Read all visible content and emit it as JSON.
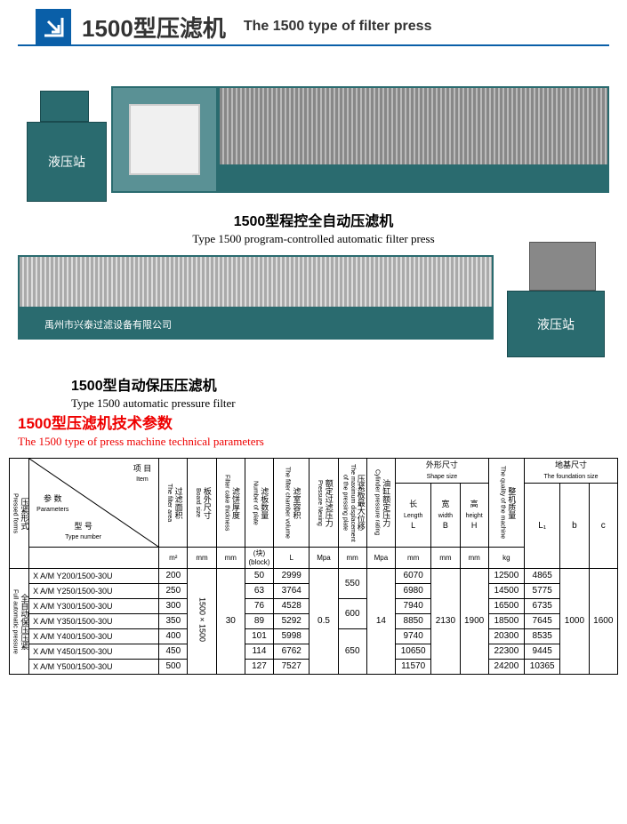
{
  "header": {
    "title_cn": "1500型压滤机",
    "title_en": "The 1500 type of filter press"
  },
  "machine1": {
    "hydraulic_label": "液压站",
    "caption_cn": "1500型程控全自动压滤机",
    "caption_en": "Type 1500 program-controlled automatic filter press"
  },
  "machine2": {
    "company_label": "禹州市兴泰过滤设备有限公司",
    "hydraulic_label": "液压站",
    "caption_cn": "1500型自动保压压滤机",
    "caption_en": "Type 1500 automatic pressure filter"
  },
  "section": {
    "title_cn": "1500型压滤机技术参数",
    "title_en": "The 1500 type of press machine technical parameters"
  },
  "colors": {
    "brand_blue": "#0a5fa8",
    "machine_teal": "#2a6b6f",
    "machine_teal_light": "#5a9195",
    "red": "#e00000",
    "border": "#000000"
  },
  "table": {
    "headers": {
      "form_cn": "压紧形式",
      "form_en": "Pressed forms",
      "param_cn": "参 数",
      "param_en": "Parameters",
      "item_cn": "项 目",
      "item_en": "Item",
      "type_cn": "型 号",
      "type_en": "Type number",
      "filter_area_cn": "过滤面积",
      "filter_area_en": "The filter area",
      "board_cn": "板外尺寸",
      "board_en": "Board size",
      "cake_cn": "滤饼厚度",
      "cake_en": "Filter cake thickness",
      "plate_num_cn": "滤板数量",
      "plate_num_en": "Number of plate",
      "chamber_cn": "滤室容积",
      "chamber_en": "The filter chamber volume",
      "pressure_cn": "额定过滤压力",
      "pressure_en": "Pressure Nexing",
      "disp_cn": "压紧板最大位移",
      "disp_en": "The maximum displacement of the pressing plate",
      "cyl_cn": "油缸额定压力",
      "cyl_en": "Cylinder pressure rating",
      "shape_cn": "外形尺寸",
      "shape_en": "Shape size",
      "len_cn": "长",
      "len_en": "Length",
      "len_sym": "L",
      "wid_cn": "宽",
      "wid_en": "width",
      "wid_sym": "B",
      "hei_cn": "高",
      "hei_en": "height",
      "hei_sym": "H",
      "quality_cn": "整机质量",
      "quality_en": "The quality of the machine",
      "found_cn": "地基尺寸",
      "found_en": "The foundation size",
      "f_l": "L₁",
      "f_b": "b",
      "f_c": "c",
      "unit_m2": "m²",
      "unit_mm": "mm",
      "unit_block": "(块)\n(block)",
      "unit_L": "L",
      "unit_Mpa": "Mpa",
      "unit_kg": "kg",
      "form_label_cn": "全自动保压压紧",
      "form_label_en": "Full automatic pressure"
    },
    "rows": [
      {
        "type": "X A/M Y200/1500-30U",
        "area": "200",
        "plates": "50",
        "vol": "2999",
        "disp": "550",
        "len": "6070",
        "kg": "12500",
        "L1": "4865"
      },
      {
        "type": "X A/M Y250/1500-30U",
        "area": "250",
        "plates": "63",
        "vol": "3764",
        "disp": "550",
        "len": "6980",
        "kg": "14500",
        "L1": "5775"
      },
      {
        "type": "X A/M Y300/1500-30U",
        "area": "300",
        "plates": "76",
        "vol": "4528",
        "disp": "600",
        "len": "7940",
        "kg": "16500",
        "L1": "6735"
      },
      {
        "type": "X A/M Y350/1500-30U",
        "area": "350",
        "plates": "89",
        "vol": "5292",
        "disp": "600",
        "len": "8850",
        "kg": "18500",
        "L1": "7645"
      },
      {
        "type": "X A/M Y400/1500-30U",
        "area": "400",
        "plates": "101",
        "vol": "5998",
        "disp": "650",
        "len": "9740",
        "kg": "20300",
        "L1": "8535"
      },
      {
        "type": "X A/M Y450/1500-30U",
        "area": "450",
        "plates": "114",
        "vol": "6762",
        "disp": "650",
        "len": "10650",
        "kg": "22300",
        "L1": "9445"
      },
      {
        "type": "X A/M Y500/1500-30U",
        "area": "500",
        "plates": "127",
        "vol": "7527",
        "disp": "650",
        "len": "11570",
        "kg": "24200",
        "L1": "10365"
      }
    ],
    "shared": {
      "board": "1500×1500",
      "cake": "30",
      "mpa": "0.5",
      "cyl": "14",
      "width": "2130",
      "height": "1900",
      "b": "1000",
      "c": "1600"
    }
  }
}
